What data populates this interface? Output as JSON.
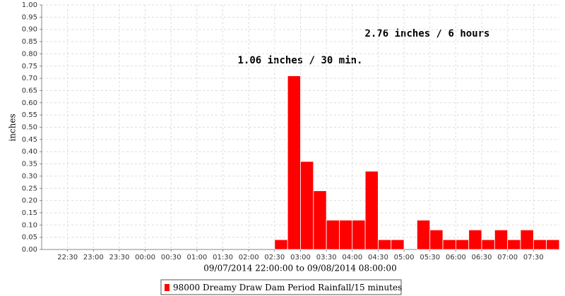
{
  "chart_data": {
    "type": "histogram",
    "y_label": "inches",
    "x_label": "09/07/2014 22:00:00 to 09/08/2014 08:00:00",
    "annotations": [
      "1.06 inches / 30 min.",
      "2.76 inches / 6 hours"
    ],
    "bins": [
      "02:30",
      "02:45",
      "03:00",
      "03:15",
      "03:30",
      "03:45",
      "04:00",
      "04:15",
      "04:30",
      "04:45",
      "05:00",
      "05:15",
      "05:30",
      "05:45",
      "06:00",
      "06:15",
      "06:30",
      "06:45",
      "07:00",
      "07:15",
      "07:30",
      "07:45",
      "08:00"
    ],
    "series": [
      {
        "name": "98000 Dreamy Draw Dam Period Rainfall/15 minutes",
        "color": "#ff0000",
        "values": [
          0.04,
          0.71,
          0.36,
          0.24,
          0.12,
          0.12,
          0.12,
          0.32,
          0.04,
          0.04,
          0,
          0.12,
          0.08,
          0.04,
          0.04,
          0.08,
          0.04,
          0.08,
          0.04,
          0.08,
          0.04,
          0.04
        ]
      }
    ],
    "xlim": [
      "22:00",
      "08:00"
    ],
    "xticks": [
      "22:30",
      "23:00",
      "23:30",
      "00:00",
      "00:30",
      "01:00",
      "01:30",
      "02:00",
      "02:30",
      "03:00",
      "03:30",
      "04:00",
      "04:30",
      "05:00",
      "05:30",
      "06:00",
      "06:30",
      "07:00",
      "07:30"
    ],
    "ylim": [
      0,
      1
    ],
    "yticks": [
      {
        "value": 0,
        "label": "0.00"
      },
      {
        "value": 0.05,
        "label": "0.05"
      },
      {
        "value": 0.1,
        "label": "0.10"
      },
      {
        "value": 0.15,
        "label": "0.15"
      },
      {
        "value": 0.2,
        "label": "0.20"
      },
      {
        "value": 0.25,
        "label": "0.25"
      },
      {
        "value": 0.3,
        "label": "0.30"
      },
      {
        "value": 0.35,
        "label": "0.35"
      },
      {
        "value": 0.4,
        "label": "0.40"
      },
      {
        "value": 0.45,
        "label": "0.45"
      },
      {
        "value": 0.5,
        "label": "0.50"
      },
      {
        "value": 0.55,
        "label": "0.55"
      },
      {
        "value": 0.6,
        "label": "0.60"
      },
      {
        "value": 0.65,
        "label": "0.65"
      },
      {
        "value": 0.7,
        "label": "0.70"
      },
      {
        "value": 0.75,
        "label": "0.75"
      },
      {
        "value": 0.8,
        "label": "0.80"
      },
      {
        "value": 0.85,
        "label": "0.85"
      },
      {
        "value": 0.9,
        "label": "0.90"
      },
      {
        "value": 0.95,
        "label": "0.95"
      },
      {
        "value": 1,
        "label": "1.00"
      }
    ],
    "grid": true
  }
}
